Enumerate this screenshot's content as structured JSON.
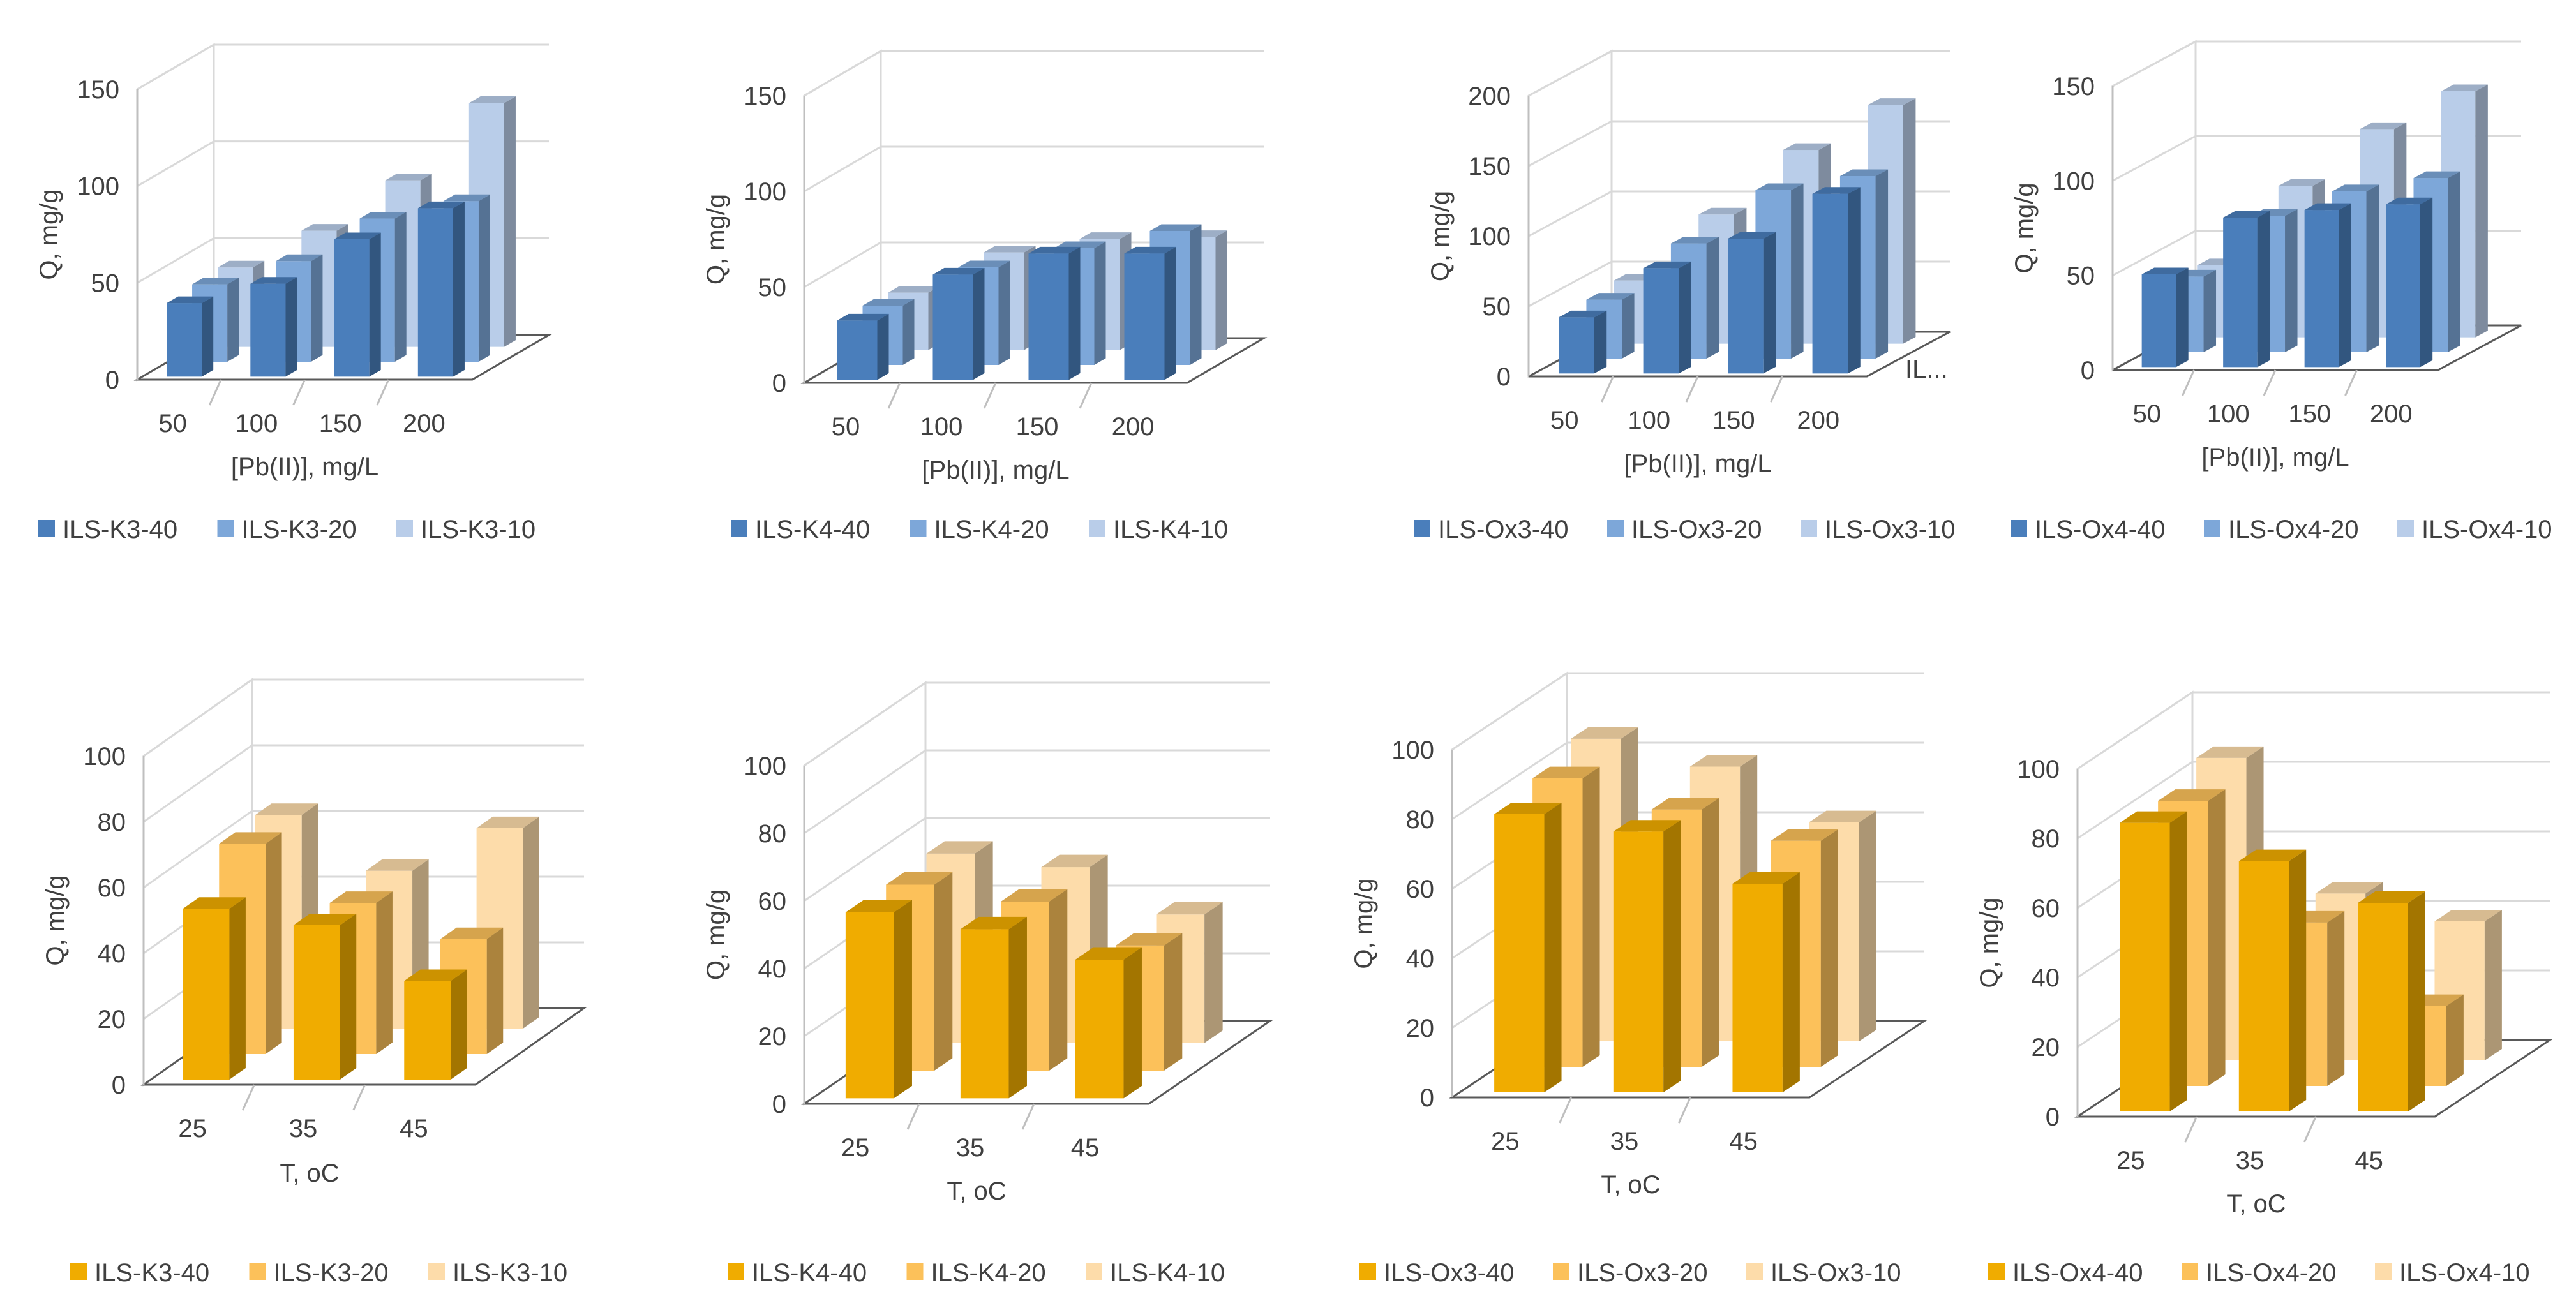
{
  "colors": {
    "blue": [
      "#4a7ebb",
      "#7da7d9",
      "#b9cde9"
    ],
    "orange": [
      "#f0ac00",
      "#fcc15a",
      "#fddcaa"
    ]
  },
  "chart_data": [
    {
      "type": "bar",
      "title": "",
      "xlabel": "[Pb(II)], mg/L",
      "ylabel": "Q, mg/g",
      "ylim": [
        0,
        150
      ],
      "yticks": [
        0,
        50,
        100,
        150
      ],
      "categories": [
        "50",
        "100",
        "150",
        "200"
      ],
      "palette": "blue",
      "series": [
        {
          "name": "ILS-K3-40",
          "values": [
            38,
            48,
            71,
            87
          ]
        },
        {
          "name": "ILS-K3-20",
          "values": [
            40,
            52,
            74,
            83
          ]
        },
        {
          "name": "ILS-K3-10",
          "values": [
            41,
            60,
            86,
            126
          ]
        }
      ],
      "legend": [
        "ILS-K3-40",
        "ILS-K3-20",
        "ILS-K3-10"
      ]
    },
    {
      "type": "bar",
      "title": "",
      "xlabel": "[Pb(II)], mg/L",
      "ylabel": "Q, mg/g",
      "ylim": [
        0,
        150
      ],
      "yticks": [
        0,
        50,
        100,
        150
      ],
      "categories": [
        "50",
        "100",
        "150",
        "200"
      ],
      "palette": "blue",
      "series": [
        {
          "name": "ILS-K4-40",
          "values": [
            31,
            55,
            66,
            66
          ]
        },
        {
          "name": "ILS-K4-20",
          "values": [
            31,
            51,
            61,
            70
          ]
        },
        {
          "name": "ILS-K4-10",
          "values": [
            30,
            51,
            58,
            59
          ]
        }
      ],
      "legend": [
        "ILS-K4-40",
        "ILS-K4-20",
        "ILS-K4-10"
      ]
    },
    {
      "type": "bar",
      "title": "",
      "xlabel": "[Pb(II)], mg/L",
      "ylabel": "Q, mg/g",
      "ylim": [
        0,
        200
      ],
      "yticks": [
        0,
        50,
        100,
        150,
        200
      ],
      "categories": [
        "50",
        "100",
        "150",
        "200"
      ],
      "depth_label": "IL...",
      "palette": "blue",
      "series": [
        {
          "name": "ILS-Ox3-40",
          "values": [
            40,
            75,
            96,
            128
          ]
        },
        {
          "name": "ILS-Ox3-20",
          "values": [
            42,
            82,
            120,
            130
          ]
        },
        {
          "name": "ILS-Ox3-10",
          "values": [
            45,
            92,
            138,
            170
          ]
        }
      ],
      "legend": [
        "ILS-Ox3-40",
        "ILS-Ox3-20",
        "ILS-Ox3-10"
      ]
    },
    {
      "type": "bar",
      "title": "",
      "xlabel": "[Pb(II)], mg/L",
      "ylabel": "Q, mg/g",
      "ylim": [
        0,
        150
      ],
      "yticks": [
        0,
        50,
        100,
        150
      ],
      "categories": [
        "50",
        "100",
        "150",
        "200"
      ],
      "palette": "blue",
      "series": [
        {
          "name": "ILS-Ox4-40",
          "values": [
            49,
            79,
            83,
            86
          ]
        },
        {
          "name": "ILS-Ox4-20",
          "values": [
            40,
            72,
            85,
            92
          ]
        },
        {
          "name": "ILS-Ox4-10",
          "values": [
            38,
            80,
            110,
            130
          ]
        }
      ],
      "legend": [
        "ILS-Ox4-40",
        "ILS-Ox4-20",
        "ILS-Ox4-10"
      ]
    },
    {
      "type": "bar",
      "title": "",
      "xlabel": "T, oC",
      "ylabel": "Q, mg/g",
      "ylim": [
        0,
        100
      ],
      "yticks": [
        0,
        20,
        40,
        60,
        80,
        100
      ],
      "categories": [
        "25",
        "35",
        "45"
      ],
      "palette": "orange",
      "series": [
        {
          "name": "ILS-K3-40",
          "values": [
            52,
            47,
            30
          ]
        },
        {
          "name": "ILS-K3-20",
          "values": [
            64,
            46,
            35
          ]
        },
        {
          "name": "ILS-K3-10",
          "values": [
            65,
            48,
            61
          ]
        }
      ],
      "legend": [
        "ILS-K3-40",
        "ILS-K3-20",
        "ILS-K3-10"
      ]
    },
    {
      "type": "bar",
      "title": "",
      "xlabel": "T, oC",
      "ylabel": "Q, mg/g",
      "ylim": [
        0,
        100
      ],
      "yticks": [
        0,
        20,
        40,
        60,
        80,
        100
      ],
      "categories": [
        "25",
        "35",
        "45"
      ],
      "palette": "orange",
      "series": [
        {
          "name": "ILS-K4-40",
          "values": [
            55,
            50,
            41
          ]
        },
        {
          "name": "ILS-K4-20",
          "values": [
            55,
            50,
            37
          ]
        },
        {
          "name": "ILS-K4-10",
          "values": [
            56,
            52,
            38
          ]
        }
      ],
      "legend": [
        "ILS-K4-40",
        "ILS-K4-20",
        "ILS-K4-10"
      ]
    },
    {
      "type": "bar",
      "title": "",
      "xlabel": "T, oC",
      "ylabel": "Q, mg/g",
      "ylim": [
        0,
        100
      ],
      "yticks": [
        0,
        20,
        40,
        60,
        80,
        100
      ],
      "categories": [
        "25",
        "35",
        "45"
      ],
      "palette": "orange",
      "series": [
        {
          "name": "ILS-Ox3-40",
          "values": [
            80,
            75,
            60
          ]
        },
        {
          "name": "ILS-Ox3-20",
          "values": [
            83,
            74,
            65
          ]
        },
        {
          "name": "ILS-Ox3-10",
          "values": [
            87,
            79,
            63
          ]
        }
      ],
      "legend": [
        "ILS-Ox3-40",
        "ILS-Ox3-20",
        "ILS-Ox3-10"
      ]
    },
    {
      "type": "bar",
      "title": "",
      "xlabel": "T, oC",
      "ylabel": "Q, mg/g",
      "ylim": [
        0,
        100
      ],
      "yticks": [
        0,
        20,
        40,
        60,
        80,
        100
      ],
      "categories": [
        "25",
        "35",
        "45"
      ],
      "palette": "orange",
      "series": [
        {
          "name": "ILS-Ox4-40",
          "values": [
            83,
            72,
            60
          ]
        },
        {
          "name": "ILS-Ox4-20",
          "values": [
            82,
            47,
            23
          ]
        },
        {
          "name": "ILS-Ox4-10",
          "values": [
            87,
            48,
            40
          ]
        }
      ],
      "legend": [
        "ILS-Ox4-40",
        "ILS-Ox4-20",
        "ILS-Ox4-10"
      ]
    }
  ]
}
